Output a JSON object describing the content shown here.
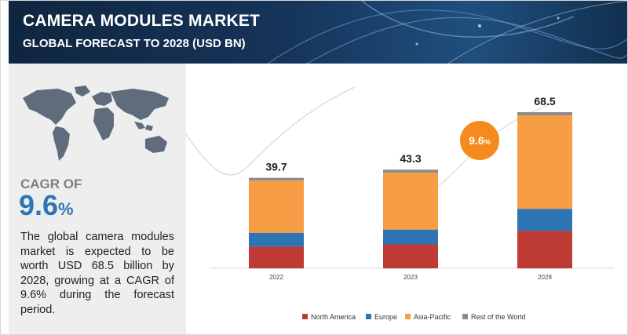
{
  "header": {
    "title": "CAMERA MODULES MARKET",
    "subtitle": "GLOBAL FORECAST TO 2028 (USD BN)"
  },
  "left_panel": {
    "cagr_label": "CAGR OF",
    "cagr_value": "9.6",
    "cagr_unit": "%",
    "description": "The global camera modules market is expected to be worth USD 68.5 billion by 2028, growing at a CAGR of 9.6% during the forecast period."
  },
  "chart_data": {
    "type": "bar",
    "stacked": true,
    "categories": [
      "2022",
      "2023",
      "2028"
    ],
    "totals": [
      "39.7",
      "43.3",
      "68.5"
    ],
    "series": [
      {
        "name": "North America",
        "color": "#be3a35",
        "values": [
          9.5,
          10.5,
          16.5
        ]
      },
      {
        "name": "Europe",
        "color": "#2e75b6",
        "values": [
          6.0,
          6.5,
          9.6
        ]
      },
      {
        "name": "Asia-Pacific",
        "color": "#f79d46",
        "values": [
          23.0,
          25.0,
          41.0
        ]
      },
      {
        "name": "Rest of the World",
        "color": "#8c8c8c",
        "values": [
          1.2,
          1.3,
          1.4
        ]
      }
    ],
    "ylim": [
      0,
      68.5
    ],
    "cagr_badge": {
      "value": "9.6",
      "unit": "%",
      "color": "#f58b1f"
    },
    "legend_position": "bottom"
  }
}
